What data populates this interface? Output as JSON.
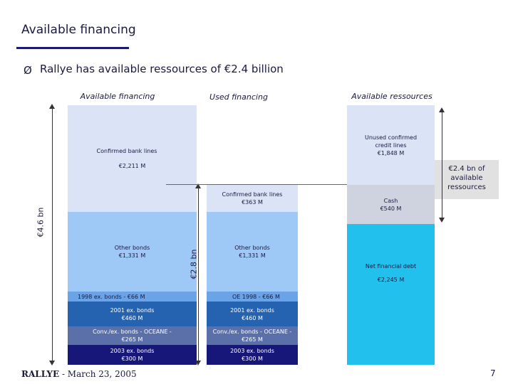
{
  "header": {
    "title": "Available financing",
    "bullet_marker": "Ø",
    "bullet_text": "Rallye has available ressources of €2.4 billion"
  },
  "columns": {
    "available": "Available financing",
    "used": "Used financing",
    "ressources": "Available ressources"
  },
  "available_bar": {
    "confirmed_label": "Confirmed bank lines",
    "confirmed_value": "€2,211 M",
    "other_label": "Other bonds",
    "other_value": "€1,331 M",
    "bonds_1998": "1998 ex. bonds - €66 M",
    "bonds_2001_label": "2001 ex. bonds",
    "bonds_2001_value": "€460 M",
    "oceane_label": "Conv./ex. bonds - OCEANE -",
    "oceane_value": "€265 M",
    "bonds_2003_label": "2003 ex. bonds",
    "bonds_2003_value": "€300 M",
    "total": "€4.6 bn"
  },
  "used_bar": {
    "confirmed_label": "Confirmed bank lines",
    "confirmed_value": "€363 M",
    "other_label": "Other bonds",
    "other_value": "€1,331 M",
    "oe_1998": "OE 1998 - €66 M",
    "bonds_2001_label": "2001 ex. bonds",
    "bonds_2001_value": "€460 M",
    "oceane_label": "Conv./ex. bonds - OCEANE -",
    "oceane_value": "€265 M",
    "bonds_2003_label": "2003 ex. bonds",
    "bonds_2003_value": "€300 M",
    "total": "€2.8 bn"
  },
  "ressources_bar": {
    "unused_label_1": "Unused confirmed",
    "unused_label_2": "credit lines",
    "unused_value": "€1,848 M",
    "cash_label": "Cash",
    "cash_value": "€540 M",
    "net_debt_label": "Net financial debt",
    "net_debt_value": "€2,245 M",
    "annotation_1": "€2.4 bn of",
    "annotation_2": "available",
    "annotation_3": "ressources"
  },
  "footer": {
    "company": "RALLYE",
    "date": "- March 23, 2005",
    "page": "7"
  }
}
